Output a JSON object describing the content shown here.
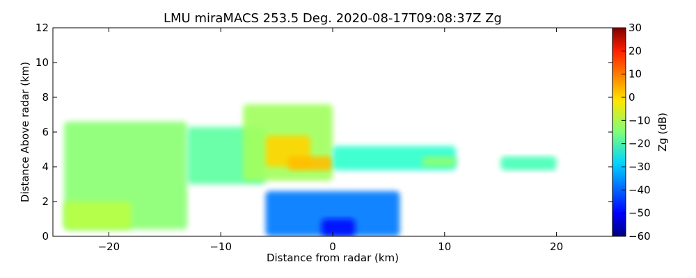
{
  "chart_data": {
    "type": "heatmap",
    "title": "LMU miraMACS 253.5 Deg. 2020-08-17T09:08:37Z  Zg",
    "xlabel": "Distance from radar (km)",
    "ylabel": "Distance Above radar  (km)",
    "xlim": [
      -25,
      25
    ],
    "ylim": [
      0,
      12
    ],
    "xticks": [
      -20,
      -10,
      0,
      10,
      20
    ],
    "xtick_labels": [
      "−20",
      "−10",
      "0",
      "10",
      "20"
    ],
    "yticks": [
      0,
      2,
      4,
      6,
      8,
      10,
      12
    ],
    "ytick_labels": [
      "0",
      "2",
      "4",
      "6",
      "8",
      "10",
      "12"
    ],
    "grid": false,
    "colorbar": {
      "label": "Zg (dB)",
      "range": [
        -60,
        30
      ],
      "colormap": "jet",
      "ticks": [
        30,
        20,
        10,
        0,
        -10,
        -20,
        -30,
        -40,
        -50,
        -60
      ],
      "tick_labels": [
        "30",
        "20",
        "10",
        "0",
        "−10",
        "−20",
        "−30",
        "−40",
        "−50",
        "−60"
      ]
    },
    "echo_regions": [
      {
        "x": [
          -24,
          -13
        ],
        "y": [
          0.4,
          6.6
        ],
        "zg": -14
      },
      {
        "x": [
          -13,
          -6
        ],
        "y": [
          3.0,
          6.3
        ],
        "zg": -18
      },
      {
        "x": [
          -8,
          0
        ],
        "y": [
          3.2,
          7.6
        ],
        "zg": -12
      },
      {
        "x": [
          -6,
          -2
        ],
        "y": [
          4.0,
          5.8
        ],
        "zg": 0
      },
      {
        "x": [
          -4,
          0
        ],
        "y": [
          3.8,
          4.6
        ],
        "zg": 2
      },
      {
        "x": [
          0,
          11
        ],
        "y": [
          3.8,
          5.2
        ],
        "zg": -22
      },
      {
        "x": [
          8,
          11
        ],
        "y": [
          4.0,
          4.6
        ],
        "zg": -14
      },
      {
        "x": [
          15,
          20
        ],
        "y": [
          3.8,
          4.6
        ],
        "zg": -20
      },
      {
        "x": [
          -6,
          6
        ],
        "y": [
          0,
          2.6
        ],
        "zg": -38
      },
      {
        "x": [
          -1,
          2
        ],
        "y": [
          0,
          1.0
        ],
        "zg": -48
      },
      {
        "x": [
          -24,
          -18
        ],
        "y": [
          0.4,
          2.0
        ],
        "zg": -10
      }
    ]
  }
}
